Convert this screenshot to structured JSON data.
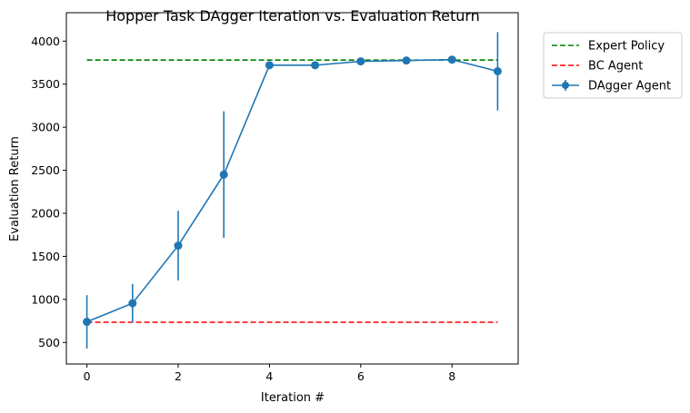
{
  "chart_data": {
    "type": "line",
    "title": "Hopper Task DAgger Iteration vs. Evaluation Return",
    "xlabel": "Iteration #",
    "ylabel": "Evaluation Return",
    "xlim": [
      -0.45,
      9.45
    ],
    "ylim": [
      250,
      4330
    ],
    "xticks": [
      0,
      2,
      4,
      6,
      8
    ],
    "yticks": [
      500,
      1000,
      1500,
      2000,
      2500,
      3000,
      3500,
      4000
    ],
    "grid": false,
    "legend_position": "outside-top-right",
    "series": [
      {
        "name": "Expert Policy",
        "kind": "hline",
        "y": 3780,
        "x_range": [
          0,
          9
        ],
        "color": "#008000",
        "style": "dashed"
      },
      {
        "name": "BC Agent",
        "kind": "hline",
        "y": 735,
        "x_range": [
          0,
          9
        ],
        "color": "#ff0000",
        "style": "dashed"
      },
      {
        "name": "DAgger Agent",
        "kind": "errorbar",
        "color": "#1f77b4",
        "x": [
          0,
          1,
          2,
          3,
          4,
          5,
          6,
          7,
          8,
          9
        ],
        "y": [
          740,
          955,
          1625,
          2450,
          3720,
          3720,
          3765,
          3775,
          3785,
          3650
        ],
        "yerr": [
          310,
          225,
          405,
          735,
          10,
          10,
          10,
          10,
          10,
          455
        ]
      }
    ]
  }
}
